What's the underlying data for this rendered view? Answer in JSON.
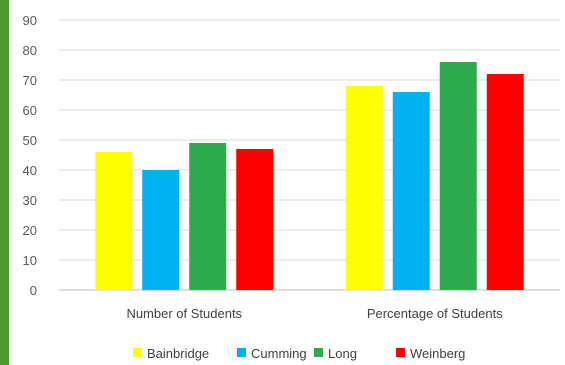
{
  "chart_data": {
    "type": "bar",
    "categories": [
      "Number of Students",
      "Percentage of Students"
    ],
    "series": [
      {
        "name": "Bainbridge",
        "color": "#ffff00",
        "values": [
          46,
          68
        ]
      },
      {
        "name": "Cumming",
        "color": "#00b0f0",
        "values": [
          40,
          66
        ]
      },
      {
        "name": "Long",
        "color": "#2eaa4f",
        "values": [
          49,
          76
        ]
      },
      {
        "name": "Weinberg",
        "color": "#ff0000",
        "values": [
          47,
          72
        ]
      }
    ],
    "ylim": [
      0,
      90
    ],
    "yticks": [
      "0",
      "10",
      "20",
      "30",
      "40",
      "50",
      "60",
      "70",
      "80",
      "90"
    ],
    "grid": true,
    "legend": "bottom"
  }
}
